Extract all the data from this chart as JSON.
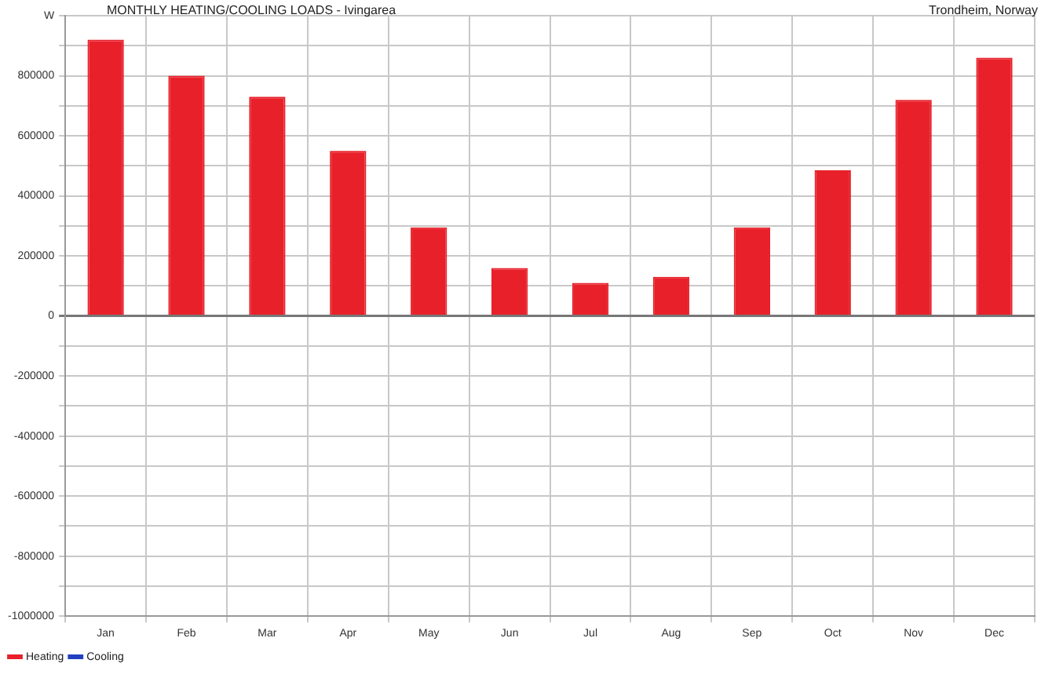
{
  "chart_data": {
    "type": "bar",
    "title": "MONTHLY HEATING/COOLING LOADS - Ivingarea",
    "subtitle": "Trondheim, Norway",
    "categories": [
      "Jan",
      "Feb",
      "Mar",
      "Apr",
      "May",
      "Jun",
      "Jul",
      "Aug",
      "Sep",
      "Oct",
      "Nov",
      "Dec"
    ],
    "series": [
      {
        "name": "Heating",
        "color": "#e8202a",
        "values": [
          920000,
          800000,
          730000,
          550000,
          295000,
          160000,
          110000,
          130000,
          295000,
          485000,
          720000,
          860000
        ]
      },
      {
        "name": "Cooling",
        "color": "#2040c0",
        "values": [
          0,
          0,
          0,
          0,
          0,
          0,
          0,
          0,
          0,
          0,
          0,
          0
        ]
      }
    ],
    "stacked": true,
    "ylim": [
      -1000000,
      1000000
    ],
    "yticks": [
      {
        "value": -1000000,
        "label": "-1000000"
      },
      {
        "value": -900000,
        "label": null
      },
      {
        "value": -800000,
        "label": "-800000"
      },
      {
        "value": -700000,
        "label": null
      },
      {
        "value": -600000,
        "label": "-600000"
      },
      {
        "value": -500000,
        "label": null
      },
      {
        "value": -400000,
        "label": "-400000"
      },
      {
        "value": -300000,
        "label": null
      },
      {
        "value": -200000,
        "label": "-200000"
      },
      {
        "value": -100000,
        "label": null
      },
      0,
      {
        "value": 100000,
        "label": null
      },
      200000,
      {
        "value": 300000,
        "label": null
      },
      400000,
      {
        "value": 500000,
        "label": null
      },
      600000,
      {
        "value": 700000,
        "label": null
      },
      800000,
      {
        "value": 900000,
        "label": null
      },
      {
        "value": 1000000,
        "label": "W"
      }
    ],
    "grid": true,
    "legend": "bottom left"
  }
}
